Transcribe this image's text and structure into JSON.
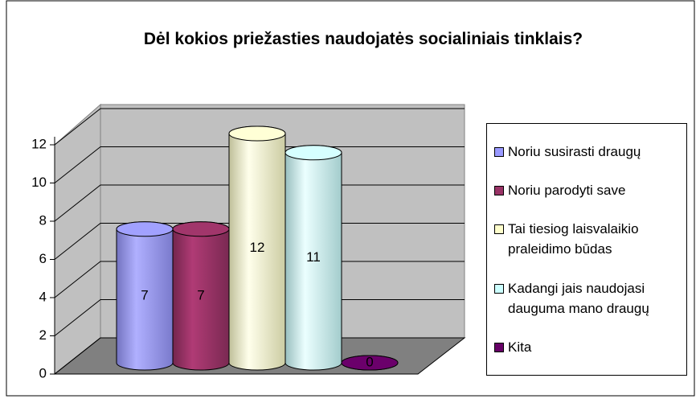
{
  "chart_data": {
    "type": "bar3d",
    "title": "Dėl kokios priežasties naudojatės socialiniais tinklais?",
    "categories": [
      "Noriu susirasti draugų",
      "Noriu parodyti save",
      "Tai tiesiog laisvalaikio praleidimo būdas",
      "Kadangi jais naudojasi dauguma mano draugų",
      "Kita"
    ],
    "values": [
      7,
      7,
      12,
      11,
      0
    ],
    "colors": [
      "#9999ff",
      "#993366",
      "#ffffcc",
      "#ccffff",
      "#660066"
    ],
    "ylim": [
      0,
      12
    ],
    "yticks": [
      0,
      2,
      4,
      6,
      8,
      10,
      12
    ],
    "grid": true,
    "legend": "right"
  }
}
